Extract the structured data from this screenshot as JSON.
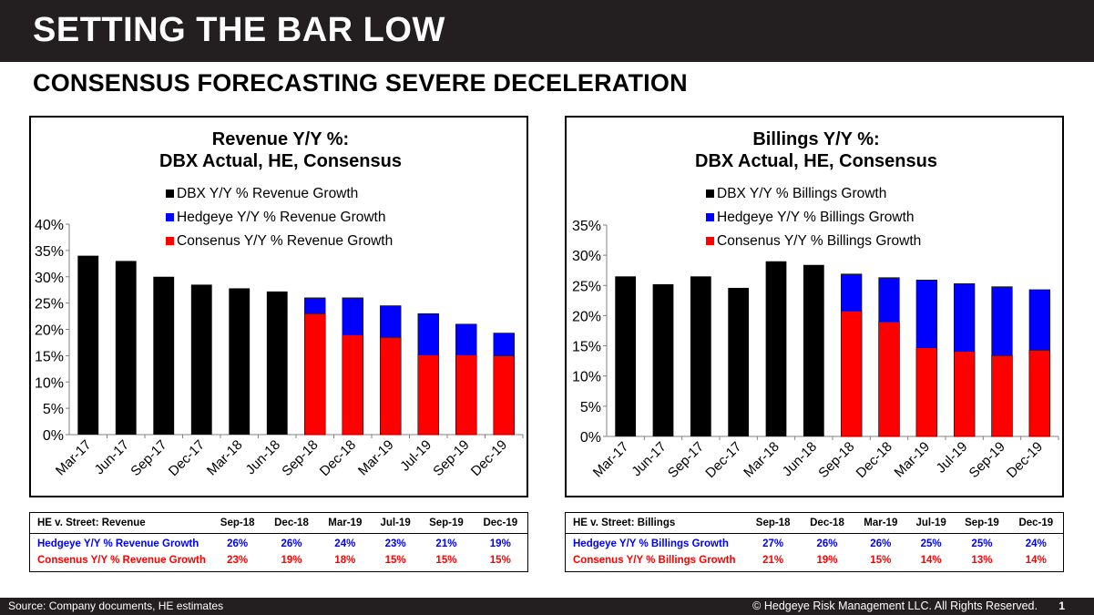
{
  "header": {
    "title": "SETTING THE BAR LOW",
    "subtitle": "CONSENSUS FORECASTING SEVERE DECELERATION"
  },
  "chart_data": [
    {
      "type": "bar",
      "title": [
        "Revenue Y/Y %:",
        "DBX Actual, HE, Consensus"
      ],
      "categories": [
        "Mar-17",
        "Jun-17",
        "Sep-17",
        "Dec-17",
        "Mar-18",
        "Jun-18",
        "Sep-18",
        "Dec-18",
        "Mar-19",
        "Jul-19",
        "Sep-19",
        "Dec-19"
      ],
      "series": [
        {
          "name": "DBX Y/Y % Revenue Growth",
          "color": "#000000",
          "values": [
            34,
            33,
            30,
            28.5,
            27.8,
            27.2,
            null,
            null,
            null,
            null,
            null,
            null
          ]
        },
        {
          "name": "Hedgeye Y/Y % Revenue Growth",
          "color": "#0000ff",
          "values": [
            null,
            null,
            null,
            null,
            null,
            null,
            26,
            26,
            24.5,
            23,
            21,
            19.3
          ]
        },
        {
          "name": "Consenus Y/Y % Revenue Growth",
          "color": "#ff0000",
          "values": [
            null,
            null,
            null,
            null,
            null,
            null,
            23,
            19,
            18.5,
            15.2,
            15.2,
            15
          ]
        }
      ],
      "ylim": [
        0,
        40
      ],
      "yticks": [
        "0%",
        "5%",
        "10%",
        "15%",
        "20%",
        "25%",
        "30%",
        "35%",
        "40%"
      ]
    },
    {
      "type": "bar",
      "title": [
        "Billings Y/Y %:",
        "DBX Actual, HE, Consensus"
      ],
      "categories": [
        "Mar-17",
        "Jun-17",
        "Sep-17",
        "Dec-17",
        "Mar-18",
        "Jun-18",
        "Sep-18",
        "Dec-18",
        "Mar-19",
        "Jul-19",
        "Sep-19",
        "Dec-19"
      ],
      "series": [
        {
          "name": "DBX Y/Y % Billings Growth",
          "color": "#000000",
          "values": [
            26.5,
            25.2,
            26.5,
            24.6,
            29,
            28.4,
            null,
            null,
            null,
            null,
            null,
            null
          ]
        },
        {
          "name": "Hedgeye Y/Y % Billings Growth",
          "color": "#0000ff",
          "values": [
            null,
            null,
            null,
            null,
            null,
            null,
            26.9,
            26.3,
            25.9,
            25.3,
            24.8,
            24.3
          ]
        },
        {
          "name": "Consenus Y/Y % Billings Growth",
          "color": "#ff0000",
          "values": [
            null,
            null,
            null,
            null,
            null,
            null,
            20.8,
            19,
            14.7,
            14.1,
            13.4,
            14.3
          ]
        }
      ],
      "ylim": [
        0,
        35
      ],
      "yticks": [
        "0%",
        "5%",
        "10%",
        "15%",
        "20%",
        "25%",
        "30%",
        "35%"
      ]
    }
  ],
  "tables": {
    "revenue": {
      "header_label": "HE v. Street: Revenue",
      "columns": [
        "Sep-18",
        "Dec-18",
        "Mar-19",
        "Jul-19",
        "Sep-19",
        "Dec-19"
      ],
      "rows": [
        {
          "label": "Hedgeye Y/Y % Revenue Growth",
          "values": [
            "26%",
            "26%",
            "24%",
            "23%",
            "21%",
            "19%"
          ]
        },
        {
          "label": "Consenus Y/Y % Revenue Growth",
          "values": [
            "23%",
            "19%",
            "18%",
            "15%",
            "15%",
            "15%"
          ]
        }
      ]
    },
    "billings": {
      "header_label": "HE v. Street: Billings",
      "columns": [
        "Sep-18",
        "Dec-18",
        "Mar-19",
        "Jul-19",
        "Sep-19",
        "Dec-19"
      ],
      "rows": [
        {
          "label": "Hedgeye Y/Y % Billings Growth",
          "values": [
            "27%",
            "26%",
            "26%",
            "25%",
            "25%",
            "24%"
          ]
        },
        {
          "label": "Consenus Y/Y % Billings Growth",
          "values": [
            "21%",
            "19%",
            "15%",
            "14%",
            "13%",
            "14%"
          ]
        }
      ]
    }
  },
  "footer": {
    "source": "Source: Company documents, HE estimates",
    "copyright": "© Hedgeye Risk Management LLC. All Rights Reserved.",
    "page": "1"
  }
}
